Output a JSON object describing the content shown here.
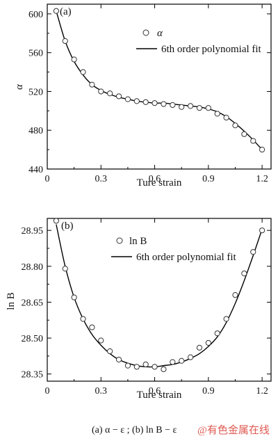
{
  "chart_data": [
    {
      "type": "scatter",
      "panel_label": "(a)",
      "xlabel": "Ture strain",
      "ylabel": "α",
      "xlim": [
        0,
        1.25
      ],
      "ylim": [
        440,
        610
      ],
      "xticks": [
        "0",
        "0.3",
        "0.6",
        "0.9",
        "1.2"
      ],
      "xtick_values": [
        0,
        0.3,
        0.6,
        0.9,
        1.2
      ],
      "yticks": [
        "440",
        "480",
        "520",
        "560",
        "600"
      ],
      "ytick_values": [
        440,
        480,
        520,
        560,
        600
      ],
      "legend": [
        "α",
        "6th order polynomial fit"
      ],
      "legend_position": "top-right",
      "series": [
        {
          "name": "α",
          "style": "open-circle",
          "x": [
            0.05,
            0.1,
            0.15,
            0.2,
            0.25,
            0.3,
            0.35,
            0.4,
            0.45,
            0.5,
            0.55,
            0.6,
            0.65,
            0.7,
            0.75,
            0.8,
            0.85,
            0.9,
            0.95,
            1.0,
            1.05,
            1.1,
            1.15,
            1.2
          ],
          "y": [
            603,
            572,
            553,
            540,
            527,
            520,
            518,
            515,
            512,
            510,
            509,
            508,
            507,
            506,
            504,
            505,
            503,
            503,
            497,
            493,
            485,
            476,
            469,
            460
          ]
        },
        {
          "name": "6th order polynomial fit",
          "style": "line",
          "x": [
            0.05,
            0.1,
            0.15,
            0.2,
            0.25,
            0.3,
            0.35,
            0.4,
            0.45,
            0.5,
            0.55,
            0.6,
            0.65,
            0.7,
            0.75,
            0.8,
            0.85,
            0.9,
            0.95,
            1.0,
            1.05,
            1.1,
            1.15,
            1.2
          ],
          "y": [
            603,
            572,
            551,
            537,
            527,
            521,
            517,
            514,
            512,
            510,
            509,
            508,
            508,
            507,
            506,
            505,
            504,
            502,
            499,
            494,
            487,
            479,
            470,
            460
          ]
        }
      ]
    },
    {
      "type": "scatter",
      "panel_label": "(b)",
      "xlabel": "Ture strain",
      "ylabel": "ln B",
      "xlim": [
        0,
        1.25
      ],
      "ylim": [
        28.32,
        29.0
      ],
      "xticks": [
        "0",
        "0.3",
        "0.6",
        "0.9",
        "1.2"
      ],
      "xtick_values": [
        0,
        0.3,
        0.6,
        0.9,
        1.2
      ],
      "yticks": [
        "28.35",
        "28.50",
        "28.65",
        "28.80",
        "28.95"
      ],
      "ytick_values": [
        28.35,
        28.5,
        28.65,
        28.8,
        28.95
      ],
      "legend": [
        "ln B",
        "6th order polynomial fit"
      ],
      "legend_position": "top-right",
      "series": [
        {
          "name": "ln B",
          "style": "open-circle",
          "x": [
            0.05,
            0.1,
            0.15,
            0.2,
            0.25,
            0.3,
            0.35,
            0.4,
            0.45,
            0.5,
            0.55,
            0.6,
            0.65,
            0.7,
            0.75,
            0.8,
            0.85,
            0.9,
            0.95,
            1.0,
            1.05,
            1.1,
            1.15,
            1.2
          ],
          "y": [
            28.99,
            28.79,
            28.67,
            28.58,
            28.545,
            28.49,
            28.445,
            28.41,
            28.385,
            28.38,
            28.39,
            28.38,
            28.37,
            28.4,
            28.405,
            28.42,
            28.46,
            28.48,
            28.52,
            28.58,
            28.68,
            28.77,
            28.86,
            28.95
          ]
        },
        {
          "name": "6th order polynomial fit",
          "style": "line",
          "x": [
            0.05,
            0.1,
            0.15,
            0.2,
            0.25,
            0.3,
            0.35,
            0.4,
            0.45,
            0.5,
            0.55,
            0.6,
            0.65,
            0.7,
            0.75,
            0.8,
            0.85,
            0.9,
            0.95,
            1.0,
            1.05,
            1.1,
            1.15,
            1.2
          ],
          "y": [
            28.975,
            28.8,
            28.67,
            28.58,
            28.515,
            28.47,
            28.435,
            28.41,
            28.395,
            28.385,
            28.38,
            28.38,
            28.385,
            28.39,
            28.4,
            28.415,
            28.435,
            28.465,
            28.505,
            28.565,
            28.645,
            28.74,
            28.845,
            28.955
          ]
        }
      ]
    }
  ],
  "caption": {
    "text": "(a)  α − ε ; (b)  ln B − ε"
  },
  "watermark": {
    "text": "@有色金属在线"
  },
  "legend_entries": {
    "a": {
      "marker_label": "α",
      "line_label": "6th order polynomial fit"
    },
    "b": {
      "marker_label": "ln B",
      "line_label": "6th order polynomial fit"
    }
  }
}
